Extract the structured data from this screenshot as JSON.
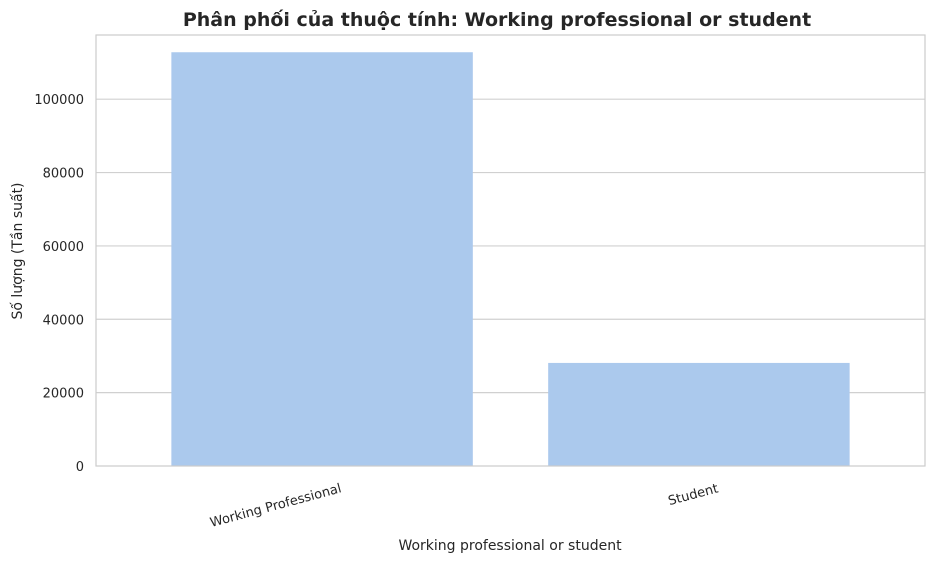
{
  "chart_data": {
    "type": "bar",
    "title": "Phân phối của thuộc tính: Working professional or student",
    "xlabel": "Working professional or student",
    "ylabel": "Số lượng (Tần suất)",
    "categories": [
      "Working Professional",
      "Student"
    ],
    "values": [
      112800,
      28100
    ],
    "ylim": [
      0,
      117500
    ],
    "yticks": [
      "0",
      "20000",
      "40000",
      "60000",
      "80000",
      "100000"
    ],
    "grid": true,
    "legend": "none"
  },
  "colors": {
    "bar": "#abc9ed",
    "grid": "#d0d0d0",
    "axes_edge": "#cccccc",
    "text": "#262626"
  }
}
